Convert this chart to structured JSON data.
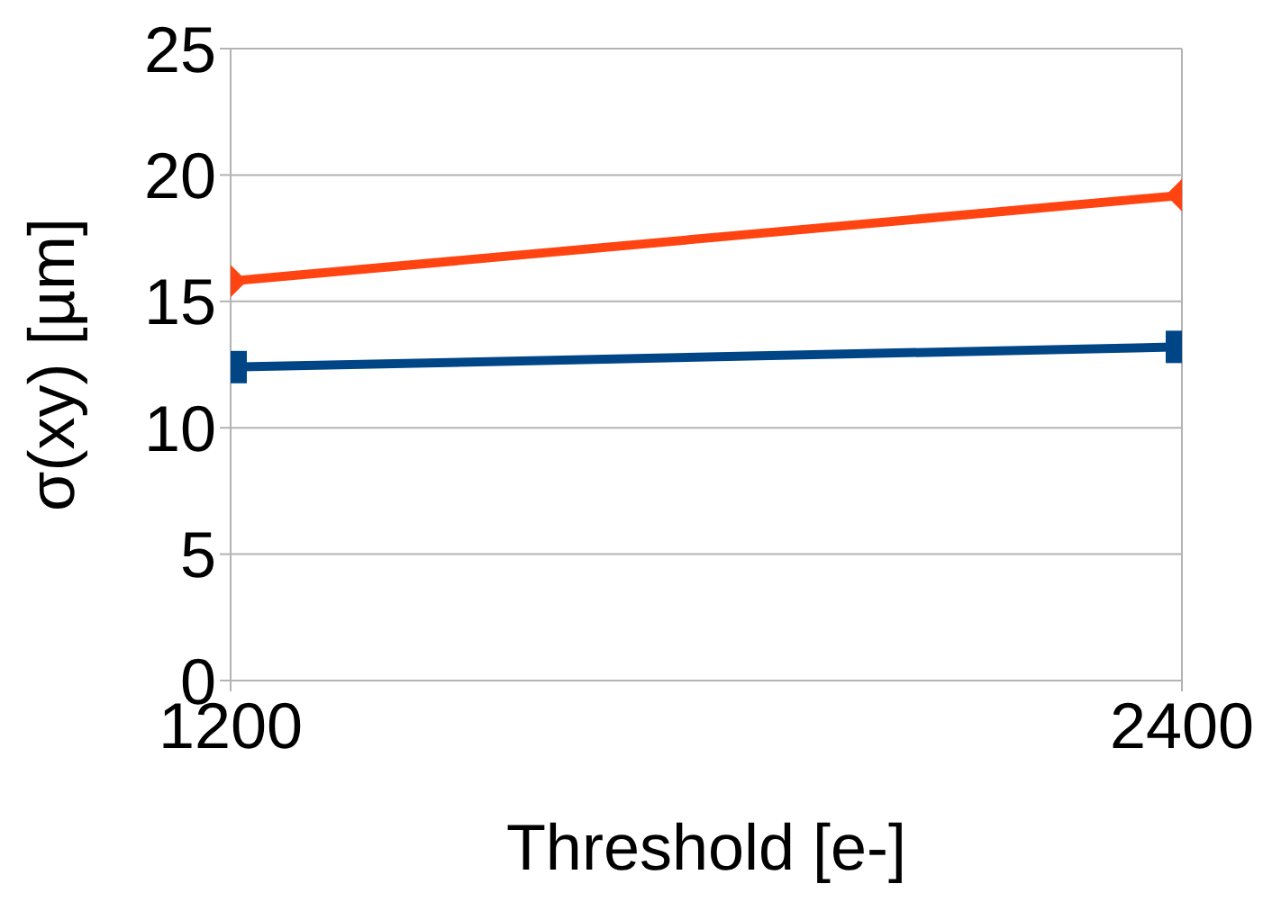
{
  "chart_data": {
    "type": "line",
    "xlabel": "Threshold [e-]",
    "ylabel": "σ(xy) [µm]",
    "x": [
      1200,
      2400
    ],
    "xlim": [
      1200,
      2400
    ],
    "xticks": [
      1200,
      2400
    ],
    "ylim": [
      0,
      25
    ],
    "yticks": [
      0,
      5,
      10,
      15,
      20,
      25
    ],
    "grid": true,
    "legend": false,
    "series": [
      {
        "color": "#ff4412",
        "marker": "diamond",
        "values": [
          15.8,
          19.2
        ]
      },
      {
        "color": "#004586",
        "marker": "square",
        "values": [
          12.4,
          13.2
        ]
      }
    ]
  }
}
